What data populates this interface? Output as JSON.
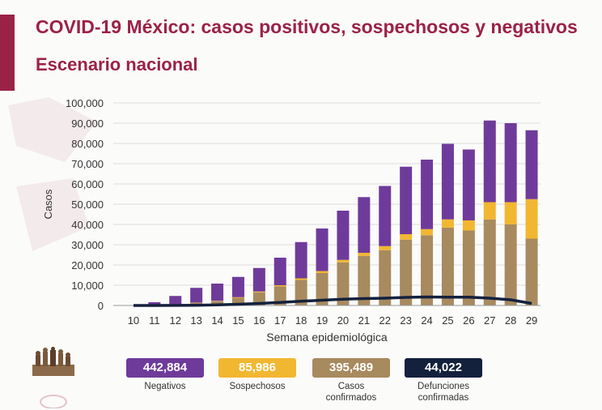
{
  "header": {
    "title": "COVID-19 México: casos positivos, sospechosos y negativos",
    "subtitle": "Escenario nacional"
  },
  "colors": {
    "accent": "#9b2247",
    "negativos": "#6f3b9a",
    "sospechosos": "#f2b731",
    "confirmados": "#a88a5f",
    "defunciones": "#14213d"
  },
  "stats": [
    {
      "value": "442,884",
      "label": "Negativos",
      "color": "#6f3b9a"
    },
    {
      "value": "85,986",
      "label": "Sospechosos",
      "color": "#f2b731"
    },
    {
      "value": "395,489",
      "label": "Casos confirmados",
      "color": "#a88a5f"
    },
    {
      "value": "44,022",
      "label": "Defunciones confirmadas",
      "color": "#14213d"
    }
  ],
  "chart_data": {
    "type": "bar",
    "stacked": true,
    "xlabel": "Semana epidemiológica",
    "ylabel": "Casos",
    "ylim": [
      0,
      100000
    ],
    "yticks": [
      "0",
      "10,000",
      "20,000",
      "30,000",
      "40,000",
      "50,000",
      "60,000",
      "70,000",
      "80,000",
      "90,000",
      "100,000"
    ],
    "grid": true,
    "categories": [
      "10",
      "11",
      "12",
      "13",
      "14",
      "15",
      "16",
      "17",
      "18",
      "19",
      "20",
      "21",
      "22",
      "23",
      "24",
      "25",
      "26",
      "27",
      "28",
      "29"
    ],
    "series": [
      {
        "name": "Casos confirmados",
        "values": [
          100,
          300,
          700,
          1300,
          2100,
          3800,
          6500,
          9400,
          12600,
          16000,
          21300,
          24500,
          27300,
          32500,
          34700,
          38500,
          37000,
          42500,
          40000,
          33000
        ]
      },
      {
        "name": "Sospechosos",
        "values": [
          0,
          0,
          0,
          100,
          200,
          300,
          400,
          600,
          800,
          1000,
          1200,
          1500,
          2000,
          2700,
          3000,
          4000,
          5000,
          8500,
          11000,
          19500
        ]
      },
      {
        "name": "Negativos",
        "values": [
          100,
          1300,
          4000,
          7300,
          8500,
          10000,
          11600,
          13600,
          17900,
          21000,
          24300,
          27500,
          29700,
          33300,
          34300,
          37300,
          35000,
          40300,
          39000,
          34000
        ]
      },
      {
        "name": "Defunciones confirmadas",
        "type": "line",
        "values": [
          0,
          10,
          30,
          100,
          300,
          600,
          1000,
          1500,
          2100,
          2600,
          3100,
          3400,
          3600,
          4000,
          4200,
          4100,
          4100,
          3600,
          2800,
          1000
        ]
      }
    ]
  }
}
